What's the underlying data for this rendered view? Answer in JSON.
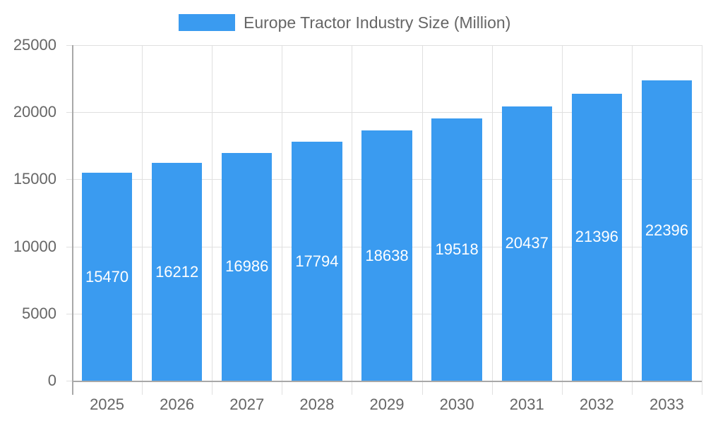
{
  "legend": {
    "label": "Europe Tractor Industry Size (Million)",
    "color": "#3a9bf0"
  },
  "chart_data": {
    "type": "bar",
    "title": "",
    "xlabel": "",
    "ylabel": "",
    "categories": [
      "2025",
      "2026",
      "2027",
      "2028",
      "2029",
      "2030",
      "2031",
      "2032",
      "2033"
    ],
    "series": [
      {
        "name": "Europe Tractor Industry Size (Million)",
        "values": [
          15470,
          16212,
          16986,
          17794,
          18638,
          19518,
          20437,
          21396,
          22396
        ],
        "color": "#3a9bf0"
      }
    ],
    "ylim": [
      0,
      25000
    ],
    "yticks": [
      "0",
      "5000",
      "10000",
      "15000",
      "20000",
      "25000"
    ],
    "grid": true,
    "legend_position": "top",
    "data_labels": true
  }
}
